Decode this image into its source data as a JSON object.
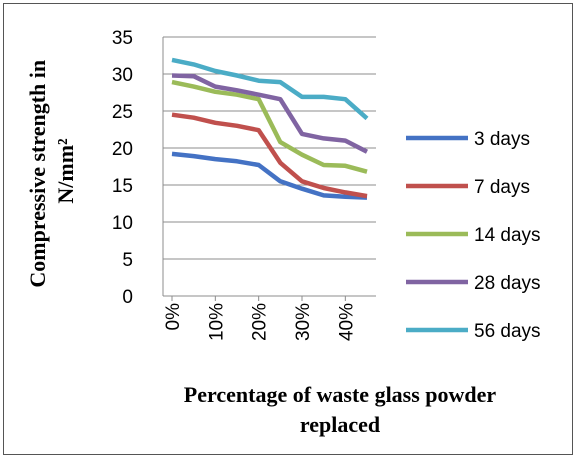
{
  "chart_data": {
    "type": "line",
    "x_tick_labels": [
      "0%",
      "10%",
      "20%",
      "30%",
      "40%"
    ],
    "x_values": [
      0,
      5,
      10,
      15,
      20,
      25,
      30,
      35,
      40,
      45
    ],
    "ylim": [
      0,
      35
    ],
    "y_ticks": [
      0,
      5,
      10,
      15,
      20,
      25,
      30,
      35
    ],
    "xlabel_lines": [
      "Percentage of waste glass powder",
      "replaced"
    ],
    "ylabel_lines": [
      "Compressive strength in",
      "N/mm²"
    ],
    "grid": "horizontal",
    "legend_position": "right",
    "series": [
      {
        "name": "3 days",
        "color": "#4472C4",
        "values": [
          19.2,
          18.9,
          18.5,
          18.2,
          17.7,
          15.5,
          14.5,
          13.6,
          13.4,
          13.3
        ]
      },
      {
        "name": "7 days",
        "color": "#C0504D",
        "values": [
          24.5,
          24.1,
          23.4,
          23.0,
          22.4,
          18.0,
          15.5,
          14.6,
          14.0,
          13.5
        ]
      },
      {
        "name": "14 days",
        "color": "#9BBB59",
        "values": [
          28.9,
          28.3,
          27.6,
          27.2,
          26.6,
          20.8,
          19.1,
          17.7,
          17.6,
          16.8
        ]
      },
      {
        "name": "28 days",
        "color": "#8064A2",
        "values": [
          29.8,
          29.7,
          28.3,
          27.8,
          27.2,
          26.6,
          21.9,
          21.3,
          21.0,
          19.5
        ]
      },
      {
        "name": "56 days",
        "color": "#4BACC6",
        "values": [
          31.9,
          31.3,
          30.4,
          29.8,
          29.1,
          28.9,
          26.9,
          26.9,
          26.6,
          24.0
        ]
      }
    ]
  }
}
